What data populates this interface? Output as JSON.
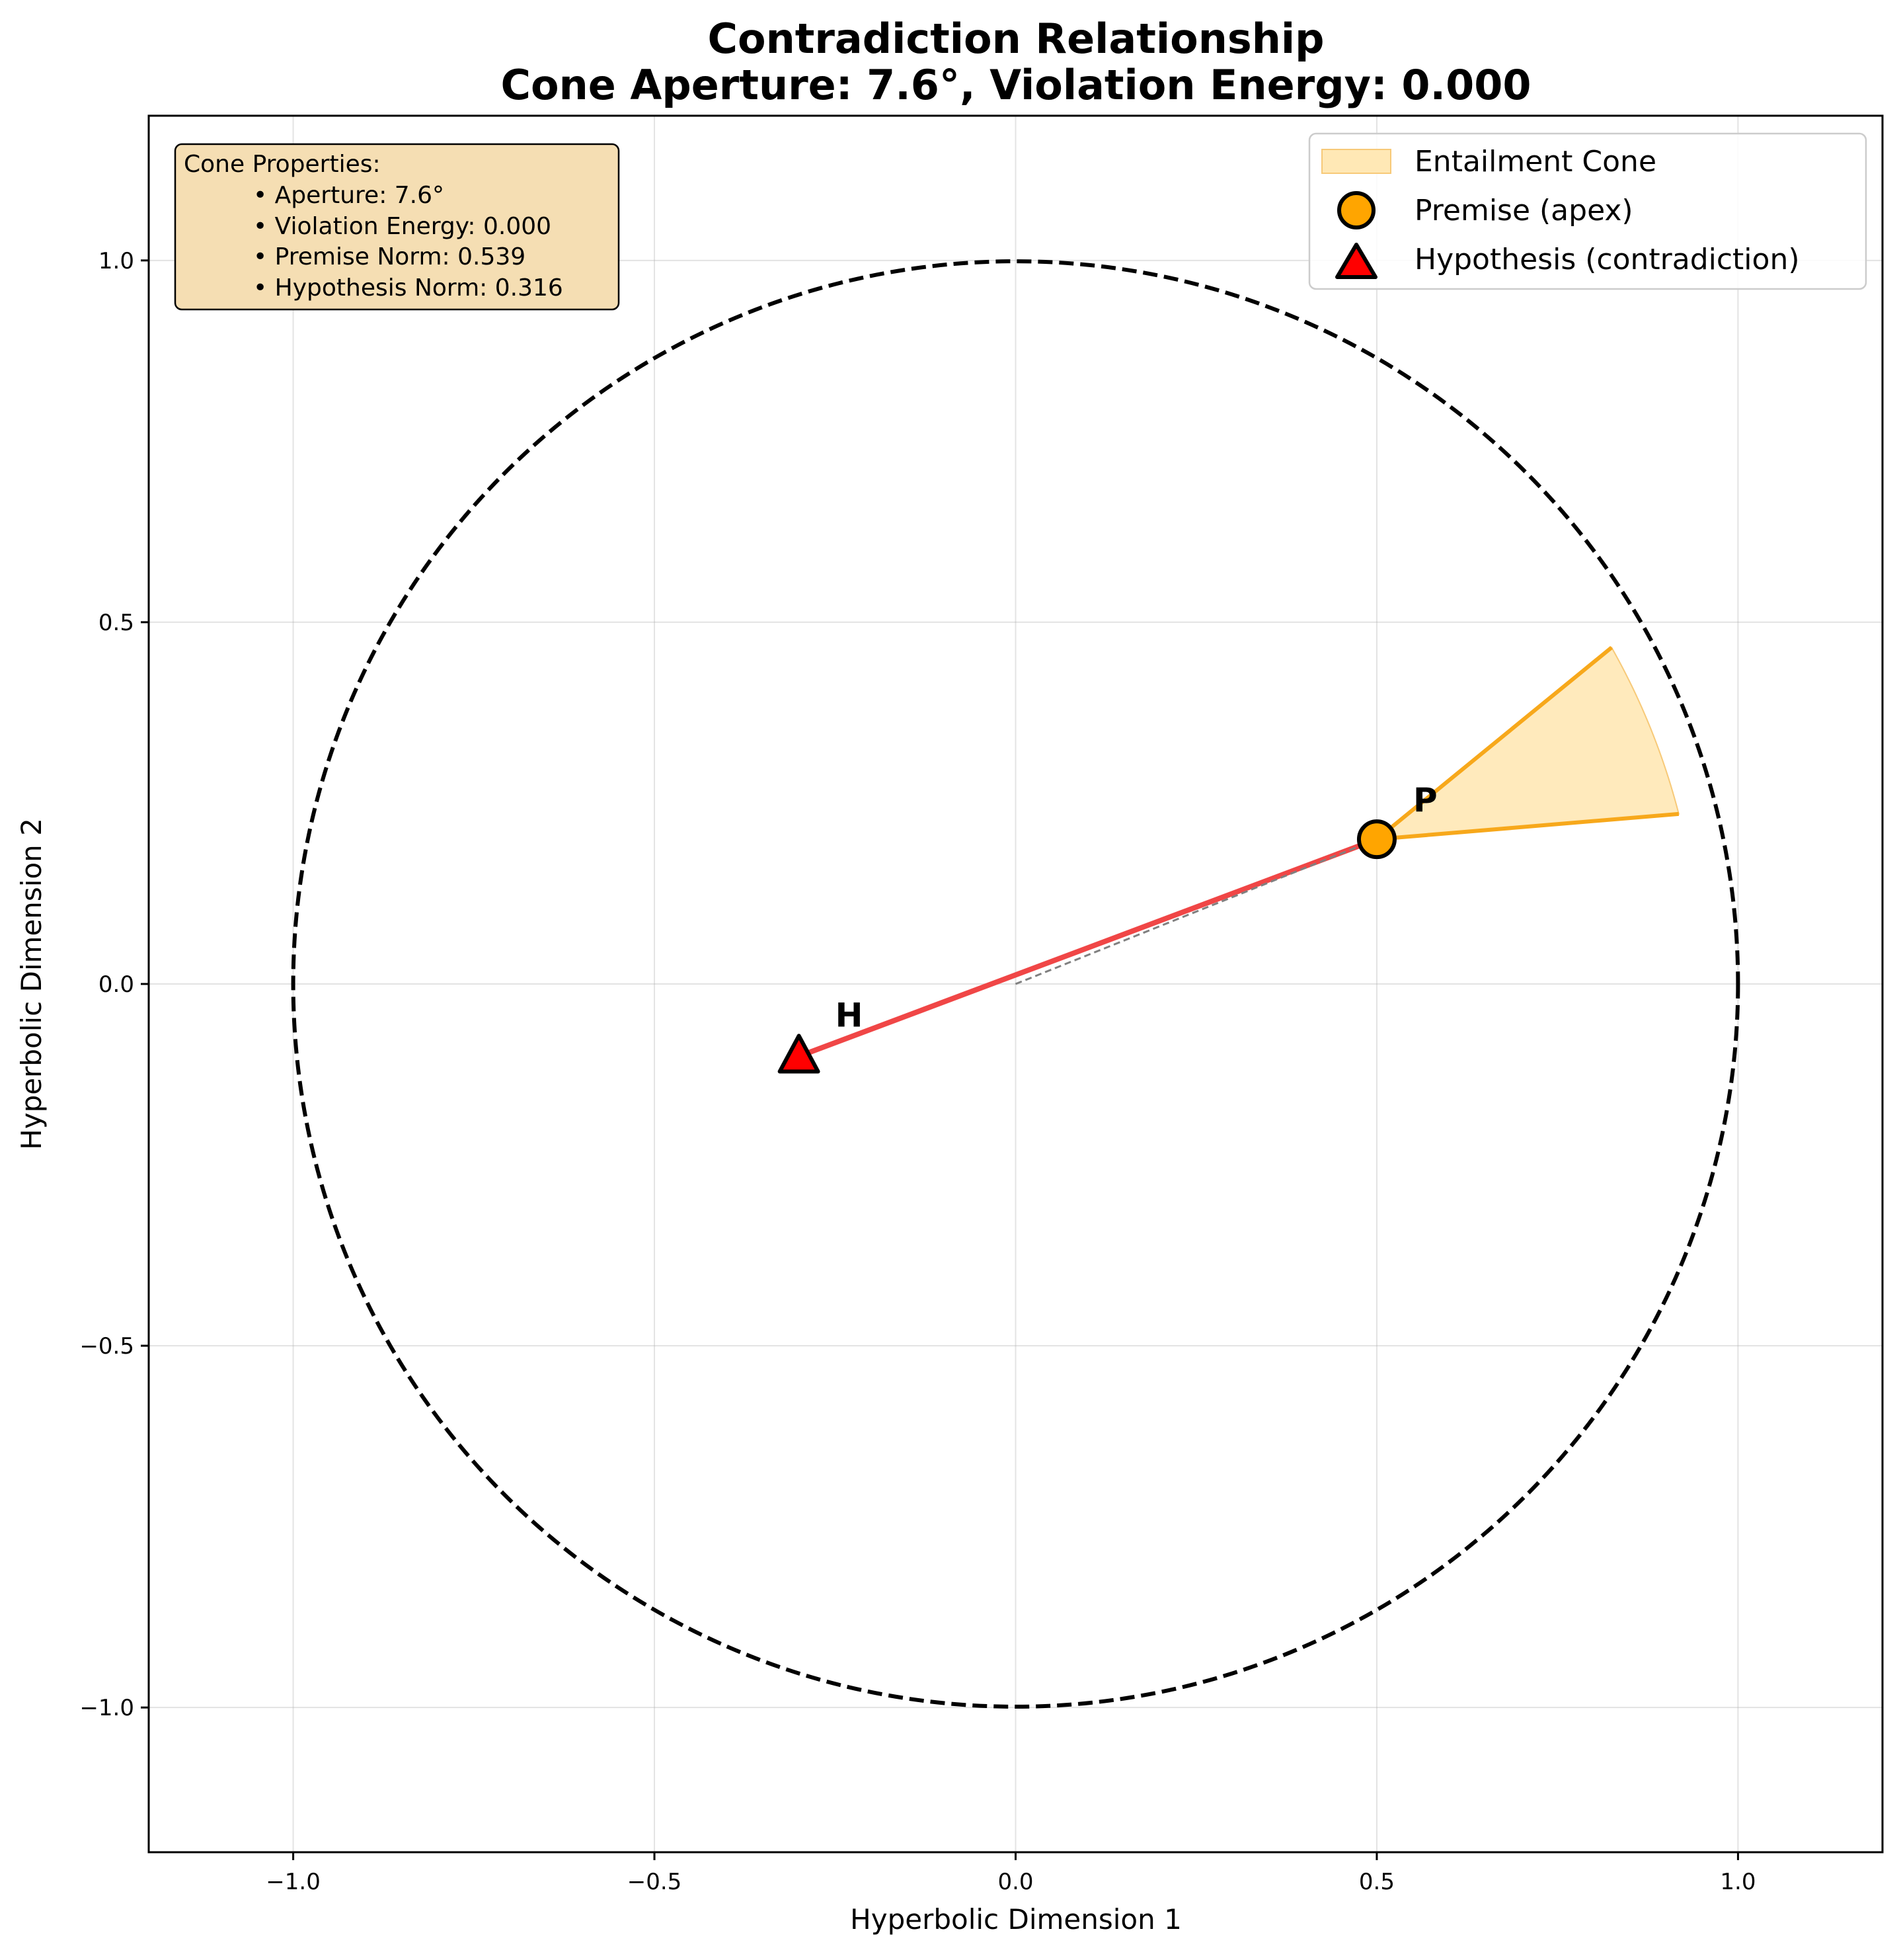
{
  "chart_data": {
    "type": "scatter",
    "title": "Contradiction Relationship",
    "subtitle": "Cone Aperture: 7.6°, Violation Energy: 0.000",
    "xlabel": "Hyperbolic Dimension 1",
    "ylabel": "Hyperbolic Dimension 2",
    "xlim": [
      -1.2,
      1.2
    ],
    "ylim": [
      -1.2,
      1.2
    ],
    "xticks": [
      -1.0,
      -0.5,
      0.0,
      0.5,
      1.0
    ],
    "yticks": [
      -1.0,
      -0.5,
      0.0,
      0.5,
      1.0
    ],
    "xtick_labels": [
      "−1.0",
      "−0.5",
      "0.0",
      "0.5",
      "1.0"
    ],
    "ytick_labels": [
      "−1.0",
      "−0.5",
      "0.0",
      "0.5",
      "1.0"
    ],
    "grid": true,
    "legend_position": "top-right",
    "unit_circle": {
      "center": [
        0,
        0
      ],
      "radius": 1.0,
      "style": "dashed",
      "color": "#000000"
    },
    "cone": {
      "name": "Entailment Cone",
      "apex": [
        0.5,
        0.2
      ],
      "edge_end_1": [
        0.825,
        0.465
      ],
      "edge_end_2": [
        0.918,
        0.235
      ],
      "fill_color": "#FFE8B5",
      "edge_color": "#F7A81B"
    },
    "premise": {
      "name": "Premise (apex)",
      "label": "P",
      "x": 0.5,
      "y": 0.2,
      "color": "#FFA500"
    },
    "hypothesis": {
      "name": "Hypothesis (contradiction)",
      "label": "H",
      "x": -0.3,
      "y": -0.1,
      "color": "#FF0000"
    },
    "connector": {
      "from": [
        -0.3,
        -0.1
      ],
      "to": [
        0.5,
        0.2
      ],
      "color": "#F04646"
    },
    "origin_ray": {
      "from": [
        0,
        0
      ],
      "to": [
        0.5,
        0.2
      ],
      "color": "#808080"
    },
    "info_box": {
      "heading": "Cone Properties:",
      "lines": [
        "• Aperture: 7.6°",
        "• Violation Energy: 0.000",
        "• Premise Norm: 0.539",
        "• Hypothesis Norm: 0.316"
      ],
      "background": "#F5DEB3"
    },
    "legend": [
      {
        "label": "Entailment Cone",
        "marker": "patch",
        "color": "#FFE8B5"
      },
      {
        "label": "Premise (apex)",
        "marker": "circle",
        "color": "#FFA500"
      },
      {
        "label": "Hypothesis (contradiction)",
        "marker": "triangle",
        "color": "#FF0000"
      }
    ]
  }
}
